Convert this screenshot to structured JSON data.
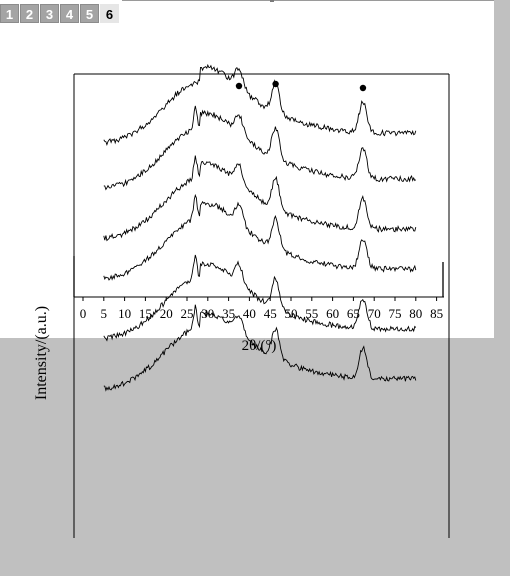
{
  "tabs": [
    {
      "label": "1",
      "active": false
    },
    {
      "label": "2",
      "active": false
    },
    {
      "label": "3",
      "active": false
    },
    {
      "label": "4",
      "active": false
    },
    {
      "label": "5",
      "active": false
    },
    {
      "label": "6",
      "active": true
    }
  ],
  "chart_data": {
    "type": "line",
    "xlabel": "2θ/(°)",
    "ylabel": "Intensity/(a.u.)",
    "x_ticks": [
      0,
      5,
      10,
      15,
      20,
      25,
      30,
      35,
      40,
      45,
      50,
      55,
      60,
      65,
      70,
      75,
      80,
      85
    ],
    "xlim": [
      5,
      80
    ],
    "marker_peaks_2theta": [
      37.5,
      46.3,
      67.3
    ],
    "series": [
      {
        "peaks": [
          37.5,
          46.3,
          67.3
        ],
        "baseline_level": 0.78
      },
      {
        "peaks": [
          27.0,
          37.5,
          46.3,
          67.3
        ],
        "baseline_level": 0.55
      },
      {
        "peaks": [
          27.0,
          37.5,
          46.3,
          67.3
        ],
        "baseline_level": 0.3
      },
      {
        "peaks": [
          27.0,
          37.5,
          46.3,
          67.3
        ],
        "baseline_level": 0.1
      },
      {
        "peaks": [
          27.0,
          37.5,
          46.3,
          67.3
        ],
        "baseline_level": -0.2
      },
      {
        "peaks": [
          27.0,
          37.5,
          46.3,
          67.3
        ],
        "baseline_level": -0.45
      }
    ]
  }
}
